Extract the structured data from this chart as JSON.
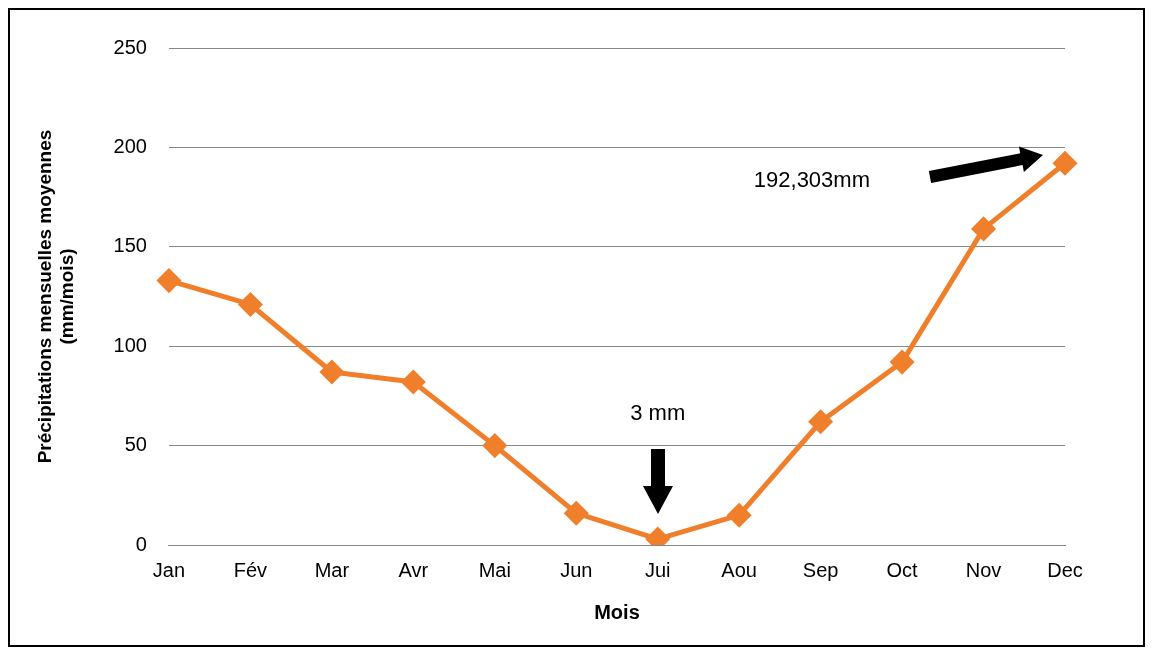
{
  "chart_data": {
    "type": "line",
    "xlabel": "Mois",
    "ylabel": "Précipitations mensuelles moyennes (mm/mois)",
    "categories": [
      "Jan",
      "Fév",
      "Mar",
      "Avr",
      "Mai",
      "Jun",
      "Jui",
      "Aou",
      "Sep",
      "Oct",
      "Nov",
      "Dec"
    ],
    "series": [
      {
        "color": "#f07f2c",
        "values": [
          133,
          121,
          87,
          82,
          50,
          16,
          3,
          15,
          62,
          92,
          159,
          192
        ]
      }
    ],
    "ylim": [
      0,
      250
    ],
    "yticks": [
      0,
      50,
      100,
      150,
      200,
      250
    ],
    "grid": "y",
    "legend": false,
    "marker": "diamond",
    "line_style": "solid",
    "annotations": [
      "3 mm",
      "192,303mm"
    ]
  }
}
